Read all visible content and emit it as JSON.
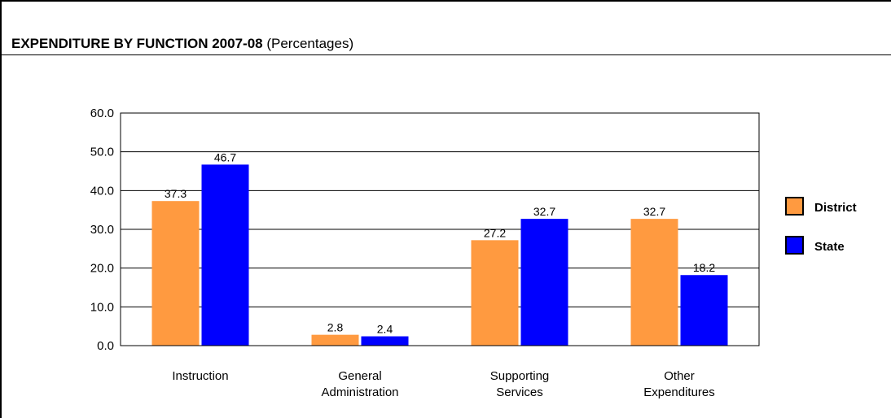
{
  "header": {
    "title_bold": "EXPENDITURE BY FUNCTION 2007-08",
    "title_rest": "(Percentages)"
  },
  "chart_data": {
    "type": "bar",
    "title": "EXPENDITURE BY FUNCTION 2007-08 (Percentages)",
    "categories": [
      [
        "Instruction"
      ],
      [
        "General",
        "Administration"
      ],
      [
        "Supporting",
        "Services"
      ],
      [
        "Other",
        "Expenditures"
      ]
    ],
    "series": [
      {
        "name": "District",
        "color": "#FF9A40",
        "values": [
          37.3,
          2.8,
          27.2,
          32.7
        ],
        "labels": [
          "37.3",
          "2.8",
          "27.2",
          "32.7"
        ]
      },
      {
        "name": "State",
        "color": "#0000FF",
        "values": [
          46.7,
          2.4,
          32.7,
          18.2
        ],
        "labels": [
          "46.7",
          "2.4",
          "32.7",
          "18.2"
        ]
      }
    ],
    "yticks": [
      "60.0",
      "50.0",
      "40.0",
      "30.0",
      "20.0",
      "10.0",
      "0.0"
    ],
    "ylim": [
      0,
      60
    ],
    "grid": true,
    "legend_position": "right"
  }
}
